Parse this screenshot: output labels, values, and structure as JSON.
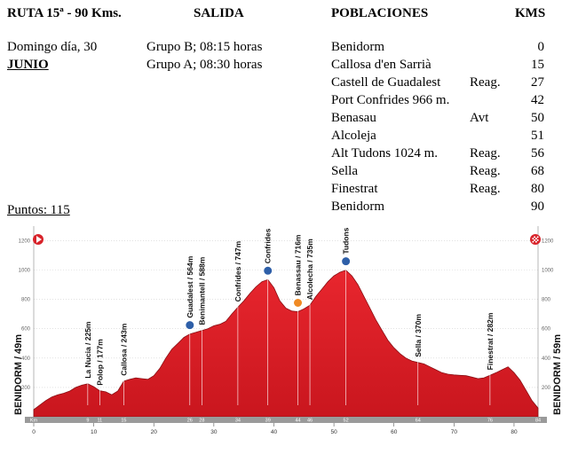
{
  "header": {
    "ruta": "RUTA 15ª - 90 Kms.",
    "salida": "SALIDA",
    "poblaciones": "POBLACIONES",
    "kms": "KMS"
  },
  "info": {
    "fecha": "Domingo día, 30",
    "mes": "JUNIO",
    "grupo_b": "Grupo B; 08:15 horas",
    "grupo_a": "Grupo A; 08:30 horas",
    "puntos": "Puntos: 115"
  },
  "poblaciones": [
    {
      "nombre": "Benidorm",
      "nota": "",
      "km": "0"
    },
    {
      "nombre": "Callosa d'en Sarrià",
      "nota": "",
      "km": "15"
    },
    {
      "nombre": "Castell de Guadalest",
      "nota": "Reag.",
      "km": "27"
    },
    {
      "nombre": "Port Confrides  966 m.",
      "nota": "",
      "km": "42"
    },
    {
      "nombre": "Benasau",
      "nota": "Avt",
      "km": "50"
    },
    {
      "nombre": "Alcoleja",
      "nota": "",
      "km": "51"
    },
    {
      "nombre": "Alt  Tudons  1024 m.",
      "nota": "Reag.",
      "km": "56"
    },
    {
      "nombre": "Sella",
      "nota": "Reag.",
      "km": "68"
    },
    {
      "nombre": "Finestrat",
      "nota": "Reag.",
      "km": "80"
    },
    {
      "nombre": "Benidorm",
      "nota": "",
      "km": "90"
    }
  ],
  "chart_data": {
    "type": "area",
    "xlabel": "",
    "ylabel": "",
    "xlim": [
      0,
      84
    ],
    "ylim": [
      0,
      1700
    ],
    "y_ticks": [
      "200",
      "400",
      "600",
      "800",
      "1000",
      "1200",
      "1400",
      "1600"
    ],
    "x_ticks": [
      "0",
      "10",
      "20",
      "30",
      "40",
      "50",
      "60",
      "70",
      "80"
    ],
    "start_label": "BENIDORM / 49m",
    "end_label": "BENIDORM / 59m",
    "km_markers": [
      "Km",
      "9",
      "11",
      "15",
      "26",
      "28",
      "34",
      "39",
      "44",
      "46",
      "52",
      "64",
      "76",
      "84"
    ],
    "km_marker_values": [
      0,
      9,
      11,
      15,
      26,
      28,
      34,
      39,
      44,
      46,
      52,
      64,
      76,
      84
    ],
    "profile": {
      "x": [
        0,
        1,
        2,
        3,
        4,
        5,
        6,
        7,
        8,
        9,
        10,
        11,
        12,
        13,
        14,
        15,
        16,
        17,
        18,
        19,
        20,
        21,
        22,
        23,
        24,
        25,
        26,
        27,
        28,
        29,
        30,
        31,
        32,
        33,
        34,
        35,
        36,
        37,
        38,
        39,
        40,
        41,
        42,
        43,
        44,
        45,
        46,
        47,
        48,
        49,
        50,
        51,
        52,
        53,
        54,
        55,
        56,
        57,
        58,
        59,
        60,
        61,
        62,
        63,
        64,
        65,
        66,
        67,
        68,
        69,
        70,
        71,
        72,
        73,
        74,
        75,
        76,
        77,
        78,
        79,
        80,
        81,
        82,
        83,
        84
      ],
      "y": [
        49,
        80,
        110,
        135,
        150,
        160,
        175,
        200,
        215,
        225,
        205,
        177,
        170,
        150,
        175,
        243,
        255,
        265,
        260,
        255,
        280,
        330,
        400,
        460,
        500,
        540,
        564,
        575,
        588,
        600,
        620,
        630,
        650,
        700,
        747,
        790,
        840,
        885,
        920,
        935,
        880,
        790,
        740,
        720,
        716,
        735,
        760,
        820,
        870,
        920,
        960,
        985,
        999,
        960,
        900,
        820,
        740,
        660,
        590,
        520,
        470,
        430,
        400,
        380,
        370,
        360,
        340,
        320,
        300,
        290,
        285,
        282,
        280,
        270,
        260,
        265,
        282,
        300,
        320,
        340,
        300,
        250,
        180,
        110,
        59
      ]
    },
    "peaks": [
      {
        "name": "La Nucia / 225m",
        "x": 9,
        "y": 225
      },
      {
        "name": "Polop / 177m",
        "x": 11,
        "y": 177
      },
      {
        "name": "Callosa / 243m",
        "x": 15,
        "y": 243
      },
      {
        "name": "Guadalest / 564m",
        "x": 26,
        "y": 564,
        "icon": "climb-marker"
      },
      {
        "name": "Benimantell / 588m",
        "x": 28,
        "y": 588
      },
      {
        "name": "Confrides / 747m",
        "x": 34,
        "y": 747
      },
      {
        "name": "Confrides / 935m",
        "x": 39,
        "y": 935,
        "icon": "climb-marker"
      },
      {
        "name": "Benassau / 716m",
        "x": 44,
        "y": 716,
        "icon": "feed-marker"
      },
      {
        "name": "Alcolecha / 735m",
        "x": 46,
        "y": 735
      },
      {
        "name": "Tudons / 999m",
        "x": 52,
        "y": 999,
        "icon": "climb-marker"
      },
      {
        "name": "Sella / 370m",
        "x": 64,
        "y": 370
      },
      {
        "name": "Finestrat / 282m",
        "x": 76,
        "y": 282
      }
    ],
    "colors": {
      "fill": "#e01c24",
      "fill_dark": "#b3121a",
      "ground": "#9a9a9a",
      "climb": "#2e5fa8",
      "feed": "#f08a24"
    }
  }
}
